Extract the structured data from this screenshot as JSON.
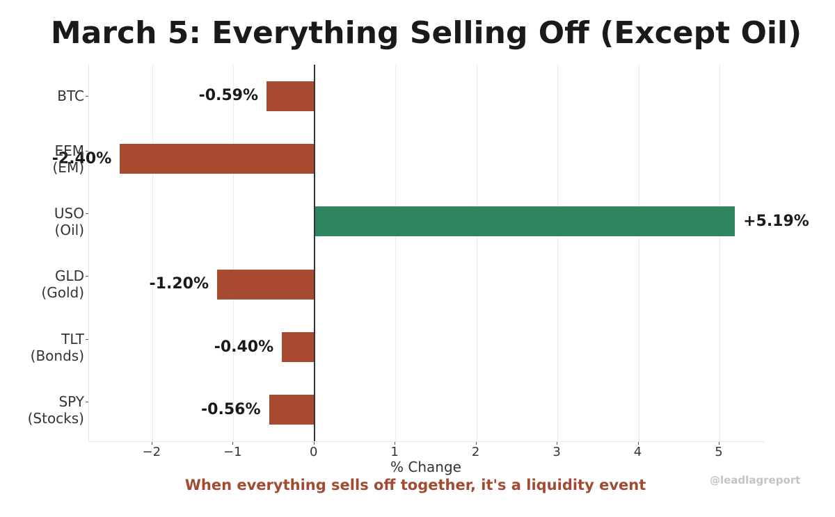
{
  "title": "March 5: Everything Selling Off (Except Oil)",
  "subtitle": "When everything sells off together, it's a liquidity event",
  "watermark": "@leadlagreport",
  "colors": {
    "negative": "#a84a30",
    "positive": "#2e8560",
    "subtitle": "#a24b32"
  },
  "chart_data": {
    "type": "bar",
    "orientation": "horizontal",
    "title": "March 5: Everything Selling Off (Except Oil)",
    "subtitle": "When everything sells off together, it's a liquidity event",
    "xlabel": "% Change",
    "ylabel": "",
    "categories": [
      "BTC",
      "EEM (EM)",
      "USO (Oil)",
      "GLD (Gold)",
      "TLT (Bonds)",
      "SPY (Stocks)"
    ],
    "values": [
      -0.59,
      -2.4,
      5.19,
      -1.2,
      -0.4,
      -0.56
    ],
    "value_labels": [
      "-0.59%",
      "-2.40%",
      "+5.19%",
      "-1.20%",
      "-0.40%",
      "-0.56%"
    ],
    "xlim": [
      -2.78,
      5.55
    ],
    "xticks": [
      "−2",
      "−1",
      "0",
      "1",
      "2",
      "3",
      "4",
      "5"
    ],
    "grid": true,
    "legend": "none"
  },
  "ylabels": [
    [
      "BTC"
    ],
    [
      "EEM",
      "(EM)"
    ],
    [
      "USO",
      "(Oil)"
    ],
    [
      "GLD",
      "(Gold)"
    ],
    [
      "TLT",
      "(Bonds)"
    ],
    [
      "SPY",
      "(Stocks)"
    ]
  ]
}
